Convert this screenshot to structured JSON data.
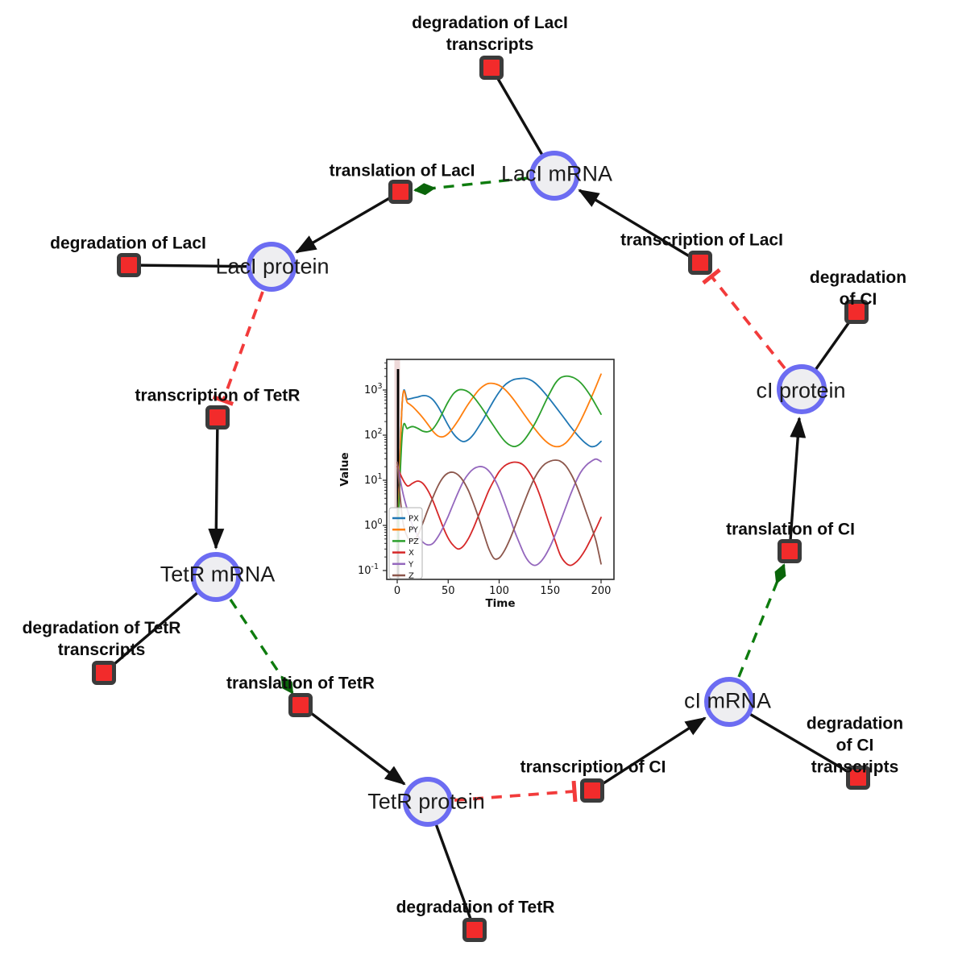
{
  "network": {
    "species": [
      {
        "id": "laci-mrna",
        "label": "LacI mRNA"
      },
      {
        "id": "laci-protein",
        "label": "LacI protein"
      },
      {
        "id": "tetr-mrna",
        "label": "TetR mRNA"
      },
      {
        "id": "tetr-protein",
        "label": "TetR protein"
      },
      {
        "id": "ci-mrna",
        "label": "cI mRNA"
      },
      {
        "id": "ci-protein",
        "label": "cI protein"
      }
    ],
    "reactions": [
      {
        "id": "deg-laci-transcripts",
        "label": "degradation of LacI\ntranscripts"
      },
      {
        "id": "translation-laci",
        "label": "translation of LacI"
      },
      {
        "id": "transcription-laci",
        "label": "transcription of LacI"
      },
      {
        "id": "deg-laci",
        "label": "degradation of LacI"
      },
      {
        "id": "transcription-tetr",
        "label": "transcription of TetR"
      },
      {
        "id": "deg-tetr-transcripts",
        "label": "degradation of TetR\ntranscripts"
      },
      {
        "id": "translation-tetr",
        "label": "translation of TetR"
      },
      {
        "id": "deg-tetr",
        "label": "degradation of TetR"
      },
      {
        "id": "transcription-ci",
        "label": "transcription of CI"
      },
      {
        "id": "deg-ci-transcripts",
        "label": "degradation of CI\ntranscripts"
      },
      {
        "id": "translation-ci",
        "label": "translation of CI"
      },
      {
        "id": "deg-ci",
        "label": "degradation of CI"
      }
    ],
    "colors": {
      "species_fill": "#eeeef1",
      "species_border": "#6c6cf2",
      "reaction_fill": "#f22b2b",
      "reaction_border": "#3b3b3b",
      "edge_default": "#111111",
      "edge_activation": "#0e7c0e",
      "edge_inhibition": "#f23b3b"
    }
  },
  "chart_data": {
    "type": "line",
    "title": "",
    "xlabel": "Time",
    "ylabel": "Value",
    "yscale": "log",
    "xlim": [
      -10,
      212
    ],
    "ylim": [
      0.06,
      4800
    ],
    "xticks": [
      0,
      50,
      100,
      150,
      200
    ],
    "ytick_exponents": [
      3,
      2,
      1,
      0,
      -1
    ],
    "legend_position": "lower left",
    "grid": false,
    "event_line_x": 0,
    "x": [
      0,
      5,
      10,
      15,
      20,
      25,
      30,
      35,
      40,
      45,
      50,
      55,
      60,
      65,
      70,
      75,
      80,
      85,
      90,
      95,
      100,
      105,
      110,
      115,
      120,
      125,
      130,
      135,
      140,
      145,
      150,
      155,
      160,
      165,
      170,
      175,
      180,
      185,
      190,
      195,
      200
    ],
    "series": [
      {
        "name": "PX",
        "color": "#1f77b4",
        "values": [
          0.3,
          560,
          620,
          660,
          700,
          750,
          730,
          610,
          430,
          270,
          165,
          108,
          82,
          72,
          80,
          105,
          155,
          235,
          380,
          600,
          900,
          1250,
          1530,
          1720,
          1790,
          1820,
          1700,
          1450,
          1130,
          840,
          610,
          435,
          310,
          220,
          155,
          112,
          84,
          66,
          56,
          58,
          73
        ]
      },
      {
        "name": "PY",
        "color": "#ff7f0e",
        "values": [
          0.3,
          560,
          520,
          430,
          330,
          245,
          175,
          122,
          96,
          92,
          108,
          148,
          215,
          330,
          500,
          720,
          1000,
          1250,
          1400,
          1390,
          1270,
          1060,
          810,
          580,
          405,
          280,
          195,
          138,
          100,
          76,
          62,
          56,
          57,
          66,
          88,
          130,
          210,
          360,
          650,
          1200,
          2250
        ]
      },
      {
        "name": "PZ",
        "color": "#2ca02c",
        "values": [
          0.3,
          108,
          140,
          155,
          142,
          123,
          119,
          138,
          200,
          330,
          550,
          820,
          1000,
          1010,
          900,
          700,
          500,
          345,
          230,
          155,
          106,
          76,
          61,
          56,
          62,
          80,
          116,
          180,
          300,
          520,
          880,
          1400,
          1850,
          2020,
          1980,
          1780,
          1450,
          1060,
          720,
          460,
          290
        ]
      },
      {
        "name": "X",
        "color": "#d62728",
        "values": [
          20,
          11,
          7.5,
          8.6,
          9.6,
          8.6,
          6,
          3.5,
          1.8,
          0.92,
          0.52,
          0.36,
          0.3,
          0.35,
          0.52,
          0.9,
          1.7,
          3.2,
          6,
          10,
          15.5,
          20.5,
          23.8,
          25.2,
          24.3,
          20.5,
          14.5,
          8.8,
          4.6,
          2.1,
          0.95,
          0.45,
          0.22,
          0.15,
          0.13,
          0.15,
          0.2,
          0.3,
          0.5,
          0.85,
          1.5
        ]
      },
      {
        "name": "Y",
        "color": "#9467bd",
        "values": [
          25,
          6,
          2.2,
          1,
          0.6,
          0.43,
          0.37,
          0.4,
          0.56,
          0.9,
          1.6,
          3,
          5.5,
          9.5,
          14,
          18,
          20,
          19.5,
          16,
          11,
          6.5,
          3.3,
          1.6,
          0.76,
          0.4,
          0.22,
          0.15,
          0.13,
          0.15,
          0.21,
          0.34,
          0.62,
          1.2,
          2.4,
          4.8,
          9,
          15,
          21,
          26,
          29.5,
          26
        ]
      },
      {
        "name": "Z",
        "color": "#8c564b",
        "values": [
          25,
          1.5,
          0.55,
          0.46,
          0.6,
          1.1,
          2.2,
          4.2,
          7.5,
          11.5,
          14.5,
          15,
          13,
          9.5,
          5.8,
          3,
          1.45,
          0.65,
          0.3,
          0.185,
          0.19,
          0.27,
          0.46,
          0.88,
          1.75,
          3.4,
          6.5,
          11.5,
          17.5,
          23,
          26.5,
          28,
          26.5,
          21.5,
          14.5,
          8.5,
          4.4,
          2.1,
          1,
          0.45,
          0.14
        ]
      }
    ]
  }
}
